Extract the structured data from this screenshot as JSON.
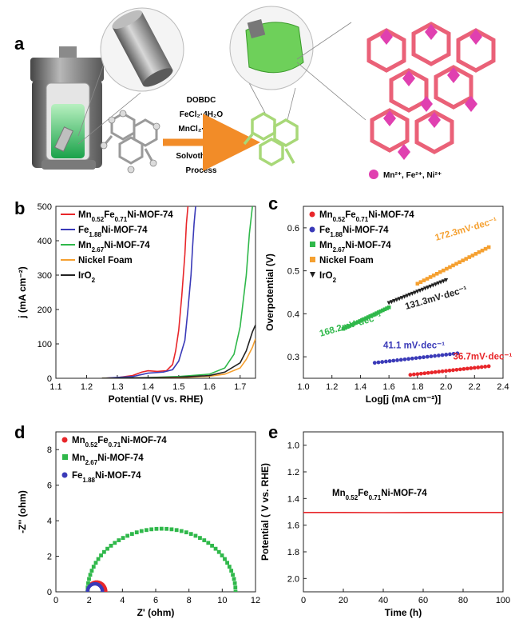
{
  "panel_a": {
    "letter": "a",
    "conditions": [
      "DOBDC",
      "FeCl₂·4H₂O",
      "MnCl₂·4H₂O",
      "Solvothermal",
      "Process"
    ],
    "ions_label": "Mn²⁺, Fe²⁺, Ni²⁺",
    "colors": {
      "arrow": "#f28c28",
      "crystal": "#6ed05a",
      "framework": "#e8506a",
      "ion": "#e040b0"
    }
  },
  "chart_data": [
    {
      "id": "b",
      "type": "line",
      "letter": "b",
      "xlabel": "Potential (V vs. RHE)",
      "ylabel": "j (mA cm⁻²)",
      "xlim": [
        1.1,
        1.75
      ],
      "ylim": [
        0,
        500
      ],
      "xticks": [
        "1.1",
        "1.2",
        "1.3",
        "1.4",
        "1.5",
        "1.6",
        "1.7"
      ],
      "yticks": [
        "0",
        "100",
        "200",
        "300",
        "400",
        "500"
      ],
      "legend_position": "top-left",
      "series": [
        {
          "name": "Mn0.52Fe0.71Ni-MOF-74",
          "base": "Mn",
          "subs": [
            "0.52",
            "Fe",
            "0.71",
            "Ni-MOF-74"
          ],
          "color": "#e8262a",
          "x": [
            1.25,
            1.3,
            1.35,
            1.38,
            1.4,
            1.43,
            1.46,
            1.48,
            1.49,
            1.5,
            1.51,
            1.52,
            1.525,
            1.53
          ],
          "y": [
            0,
            2,
            8,
            18,
            22,
            20,
            22,
            40,
            80,
            140,
            240,
            360,
            450,
            500
          ]
        },
        {
          "name": "Fe1.88Ni-MOF-74",
          "base": "Fe",
          "subs": [
            "1.88",
            "Ni-MOF-74"
          ],
          "color": "#3a3ab8",
          "x": [
            1.25,
            1.35,
            1.4,
            1.45,
            1.48,
            1.5,
            1.52,
            1.53,
            1.54,
            1.545,
            1.55,
            1.555
          ],
          "y": [
            0,
            5,
            15,
            18,
            25,
            50,
            110,
            200,
            300,
            380,
            450,
            500
          ]
        },
        {
          "name": "Mn2.67Ni-MOF-74",
          "base": "Mn",
          "subs": [
            "2.67",
            "Ni-MOF-74"
          ],
          "color": "#2fb84a",
          "x": [
            1.25,
            1.4,
            1.5,
            1.6,
            1.65,
            1.68,
            1.7,
            1.72,
            1.73,
            1.74
          ],
          "y": [
            0,
            2,
            5,
            12,
            30,
            70,
            150,
            300,
            420,
            500
          ]
        },
        {
          "name": "Nickel Foam",
          "base": "Nickel Foam",
          "subs": [],
          "color": "#f5a030",
          "x": [
            1.25,
            1.5,
            1.6,
            1.65,
            1.7,
            1.72,
            1.74,
            1.75
          ],
          "y": [
            0,
            2,
            6,
            12,
            30,
            55,
            90,
            115
          ]
        },
        {
          "name": "IrO2",
          "base": "IrO",
          "subs": [
            "2"
          ],
          "color": "#222222",
          "x": [
            1.25,
            1.5,
            1.6,
            1.65,
            1.7,
            1.72,
            1.74,
            1.75
          ],
          "y": [
            0,
            3,
            8,
            18,
            45,
            80,
            135,
            155
          ]
        }
      ]
    },
    {
      "id": "c",
      "type": "scatter",
      "letter": "c",
      "xlabel": "Log[j (mA cm⁻²)]",
      "ylabel": "Overpotential (V)",
      "xlim": [
        1.0,
        2.4
      ],
      "ylim": [
        0.25,
        0.65
      ],
      "xticks": [
        "1.0",
        "1.2",
        "1.4",
        "1.6",
        "1.8",
        "2.0",
        "2.2",
        "2.4"
      ],
      "yticks": [
        "0.3",
        "0.4",
        "0.5",
        "0.6"
      ],
      "legend_position": "top-left",
      "series": [
        {
          "name": "Mn0.52Fe0.71Ni-MOF-74",
          "base": "Mn",
          "subs": [
            "0.52",
            "Fe",
            "0.71",
            "Ni-MOF-74"
          ],
          "color": "#e8262a",
          "marker": "circle",
          "x": [
            1.75,
            2.3
          ],
          "y": [
            0.258,
            0.278
          ],
          "slope": "36.7mV·dec⁻¹",
          "slope_at": [
            2.05,
            0.294
          ]
        },
        {
          "name": "Fe1.88Ni-MOF-74",
          "base": "Fe",
          "subs": [
            "1.88",
            "Ni-MOF-74"
          ],
          "color": "#3a3ab8",
          "marker": "circle",
          "x": [
            1.5,
            2.08
          ],
          "y": [
            0.286,
            0.308
          ],
          "slope": "41.1 mV·dec⁻¹",
          "slope_at": [
            1.56,
            0.32
          ]
        },
        {
          "name": "Mn2.67Ni-MOF-74",
          "base": "Mn",
          "subs": [
            "2.67",
            "Ni-MOF-74"
          ],
          "color": "#2fb84a",
          "marker": "square",
          "x": [
            1.28,
            1.6
          ],
          "y": [
            0.365,
            0.415
          ],
          "slope": "168.2mV·dec⁻¹",
          "slope_at": [
            1.12,
            0.347
          ]
        },
        {
          "name": "Nickel Foam",
          "base": "Nickel Foam",
          "subs": [],
          "color": "#f5a030",
          "marker": "square",
          "x": [
            1.8,
            2.3
          ],
          "y": [
            0.47,
            0.555
          ],
          "slope": "172.3mV·dec⁻¹",
          "slope_at": [
            1.93,
            0.57
          ]
        },
        {
          "name": "IrO2",
          "base": "IrO",
          "subs": [
            "2"
          ],
          "color": "#222222",
          "marker": "triangle",
          "x": [
            1.6,
            2.0
          ],
          "y": [
            0.425,
            0.478
          ],
          "slope": "131.3mV·dec⁻¹",
          "slope_at": [
            1.72,
            0.41
          ]
        }
      ]
    },
    {
      "id": "d",
      "type": "scatter",
      "letter": "d",
      "xlabel": "Z' (ohm)",
      "ylabel": "-Z'' (ohm)",
      "xlim": [
        0,
        12
      ],
      "ylim": [
        0,
        9
      ],
      "xticks": [
        "0",
        "2",
        "4",
        "6",
        "8",
        "10",
        "12"
      ],
      "yticks": [
        "0",
        "2",
        "4",
        "6",
        "8"
      ],
      "legend_position": "top-left",
      "series": [
        {
          "name": "Mn0.52Fe0.71Ni-MOF-74",
          "base": "Mn",
          "subs": [
            "0.52",
            "Fe",
            "0.71",
            "Ni-MOF-74"
          ],
          "color": "#e8262a",
          "marker": "circle",
          "arc": [
            1.9,
            3.0
          ]
        },
        {
          "name": "Mn2.67Ni-MOF-74",
          "base": "Mn",
          "subs": [
            "2.67",
            "Ni-MOF-74"
          ],
          "color": "#2fb84a",
          "marker": "square",
          "arc": [
            1.9,
            10.8
          ]
        },
        {
          "name": "Fe1.88Ni-MOF-74",
          "base": "Fe",
          "subs": [
            "1.88",
            "Ni-MOF-74"
          ],
          "color": "#3a3ab8",
          "marker": "circle",
          "arc": [
            1.9,
            2.8
          ]
        }
      ]
    },
    {
      "id": "e",
      "type": "line",
      "letter": "e",
      "xlabel": "Time (h)",
      "ylabel": "Potential ( V vs. RHE)",
      "xlim": [
        0,
        100
      ],
      "ylim": [
        2.1,
        0.9
      ],
      "xticks": [
        "0",
        "20",
        "40",
        "60",
        "80",
        "100"
      ],
      "yticks": [
        "1.0",
        "1.2",
        "1.4",
        "1.6",
        "1.8",
        "2.0"
      ],
      "annotation": {
        "base": "Mn",
        "subs": [
          "0.52",
          "Fe",
          "0.71",
          "Ni-MOF-74"
        ]
      },
      "series": [
        {
          "name": "Mn0.52Fe0.71Ni-MOF-74",
          "color": "#e8262a",
          "x": [
            0,
            20,
            40,
            60,
            80,
            100
          ],
          "y": [
            1.505,
            1.505,
            1.506,
            1.505,
            1.505,
            1.505
          ]
        }
      ]
    }
  ]
}
